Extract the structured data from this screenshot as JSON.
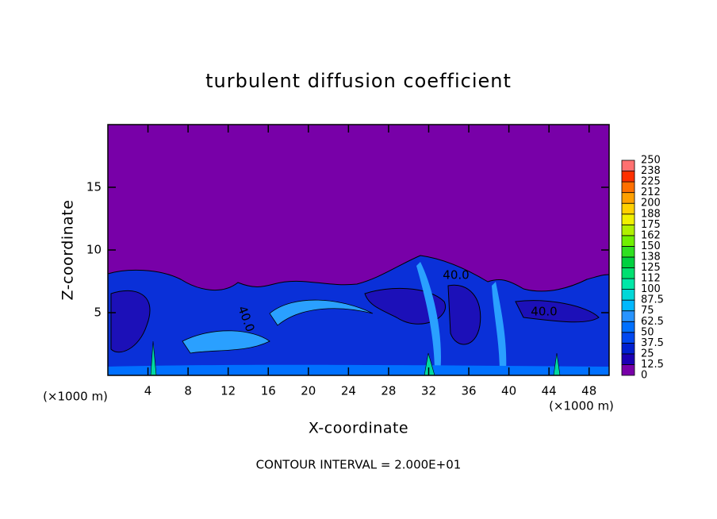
{
  "chart_data": {
    "type": "contour",
    "title": "turbulent diffusion coefficient",
    "xlabel": "X-coordinate",
    "ylabel": "Z-coordinate",
    "axis_unit": "(×1000 m)",
    "footnote": "CONTOUR INTERVAL = 2.000E+01",
    "contour_labels": [
      "40.0",
      "40.0",
      "40.0"
    ],
    "xlim": [
      0,
      50
    ],
    "xticks": [
      4,
      8,
      12,
      16,
      20,
      24,
      28,
      32,
      36,
      40,
      44,
      48
    ],
    "ylim": [
      0,
      20
    ],
    "yticks": [
      5,
      10,
      15
    ],
    "colorbar": {
      "levels": [
        0,
        12.5,
        25,
        37.5,
        50,
        62.5,
        75,
        87.5,
        100,
        {
          "value": 112.5,
          "label": "112"
        },
        125,
        {
          "value": 137.5,
          "label": "138"
        },
        150,
        {
          "value": 162.5,
          "label": "162"
        },
        175,
        {
          "value": 187.5,
          "label": "188"
        },
        200,
        {
          "value": 212.5,
          "label": "212"
        },
        225,
        {
          "value": 237.5,
          "label": "238"
        },
        250
      ],
      "colors": [
        "#7800a8",
        "#1c00b4",
        "#0020d0",
        "#0048f0",
        "#0070ff",
        "#2894ff",
        "#00b8ff",
        "#00d8d8",
        "#00e8a8",
        "#00e070",
        "#00d040",
        "#30e020",
        "#70f000",
        "#b0f000",
        "#f0f000",
        "#ffd000",
        "#ffa000",
        "#ff7000",
        "#ff3000",
        "#ff7070"
      ]
    }
  }
}
